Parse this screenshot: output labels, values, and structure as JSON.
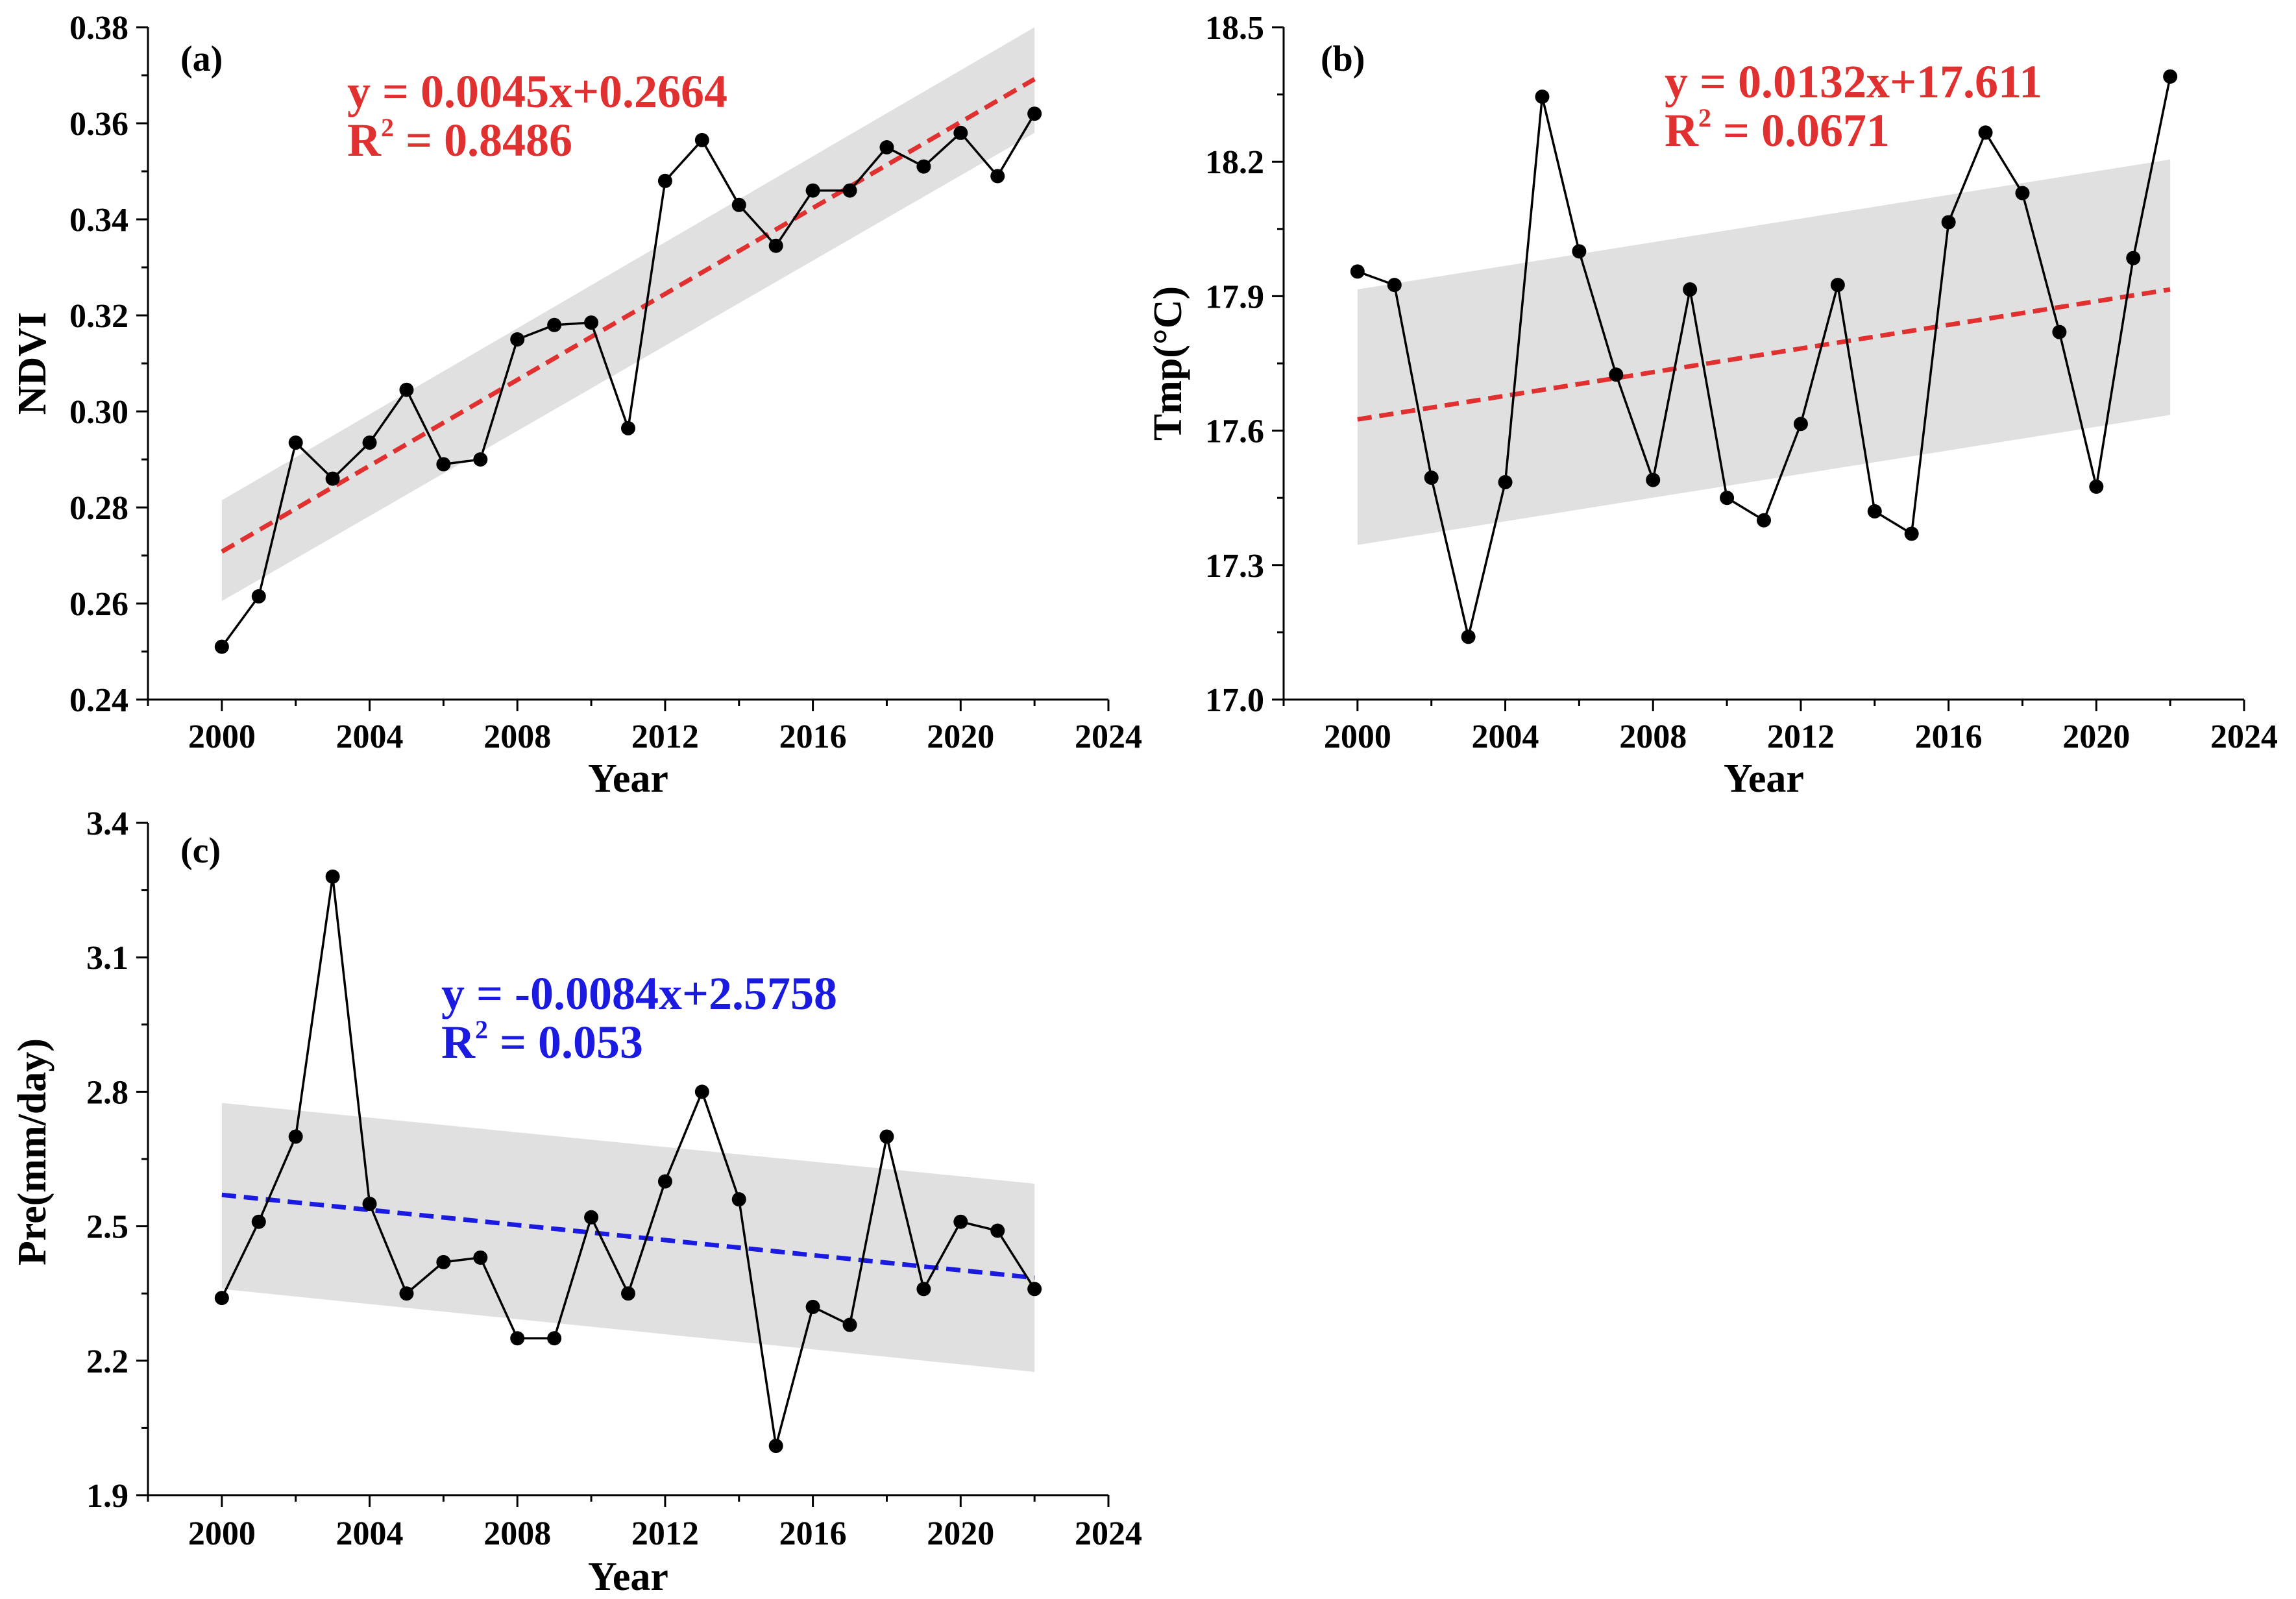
{
  "chart_data": [
    {
      "type": "line",
      "panel_label": "(a)",
      "xlabel": "Year",
      "ylabel": "NDVI",
      "xlim": [
        1998,
        2024
      ],
      "ylim": [
        0.24,
        0.38
      ],
      "xticks": [
        2000,
        2004,
        2008,
        2012,
        2016,
        2020,
        2024
      ],
      "xtick_labels": [
        "2000",
        "2004",
        "2008",
        "2012",
        "2016",
        "2020",
        "2024"
      ],
      "yticks": [
        0.24,
        0.26,
        0.28,
        0.3,
        0.32,
        0.34,
        0.36,
        0.38
      ],
      "ytick_labels": [
        "0.24",
        "0.26",
        "0.28",
        "0.30",
        "0.32",
        "0.34",
        "0.36",
        "0.38"
      ],
      "x": [
        2000,
        2001,
        2002,
        2003,
        2004,
        2005,
        2006,
        2007,
        2008,
        2009,
        2010,
        2011,
        2012,
        2013,
        2014,
        2015,
        2016,
        2017,
        2018,
        2019,
        2020,
        2021,
        2022
      ],
      "values": [
        0.251,
        0.2615,
        0.2935,
        0.286,
        0.2935,
        0.3045,
        0.289,
        0.29,
        0.315,
        0.318,
        0.3185,
        0.2965,
        0.348,
        0.3565,
        0.343,
        0.3345,
        0.346,
        0.346,
        0.355,
        0.351,
        0.358,
        0.349,
        0.362
      ],
      "trend": {
        "start": [
          2000,
          0.2708
        ],
        "end": [
          2022,
          0.3692
        ],
        "color": "#e03030"
      },
      "ci_lower": [
        0.2605,
        0.358
      ],
      "ci_upper": [
        0.2815,
        0.38
      ],
      "equation": "y = 0.0045x+0.2664",
      "r2_label": "R",
      "r2_sup": "2",
      "r2_value": " = 0.8486",
      "annotation_color": "#e03030"
    },
    {
      "type": "line",
      "panel_label": "(b)",
      "xlabel": "Year",
      "ylabel": "Tmp(°C)",
      "xlim": [
        1998,
        2024
      ],
      "ylim": [
        17.0,
        18.5
      ],
      "xticks": [
        2000,
        2004,
        2008,
        2012,
        2016,
        2020,
        2024
      ],
      "xtick_labels": [
        "2000",
        "2004",
        "2008",
        "2012",
        "2016",
        "2020",
        "2024"
      ],
      "yticks": [
        17.0,
        17.3,
        17.6,
        17.9,
        18.2,
        18.5
      ],
      "ytick_labels": [
        "17.0",
        "17.3",
        "17.6",
        "17.9",
        "18.2",
        "18.5"
      ],
      "x": [
        2000,
        2001,
        2002,
        2003,
        2004,
        2005,
        2006,
        2007,
        2008,
        2009,
        2010,
        2011,
        2012,
        2013,
        2014,
        2015,
        2016,
        2017,
        2018,
        2019,
        2020,
        2021,
        2022
      ],
      "values": [
        17.955,
        17.925,
        17.495,
        17.14,
        17.485,
        18.345,
        18.0,
        17.725,
        17.49,
        17.915,
        17.45,
        17.4,
        17.615,
        17.925,
        17.42,
        17.37,
        18.065,
        18.265,
        18.13,
        17.82,
        17.475,
        17.985,
        18.39
      ],
      "trend": {
        "start": [
          2000,
          17.625
        ],
        "end": [
          2022,
          17.915
        ],
        "color": "#e03030"
      },
      "ci_lower": [
        17.345,
        17.635
      ],
      "ci_upper": [
        17.915,
        18.205
      ],
      "equation": "y = 0.0132x+17.611",
      "r2_label": "R",
      "r2_sup": "2",
      "r2_value": " = 0.0671",
      "annotation_color": "#e03030"
    },
    {
      "type": "line",
      "panel_label": "(c)",
      "xlabel": "Year",
      "ylabel": "Pre(mm/day)",
      "xlim": [
        1998,
        2024
      ],
      "ylim": [
        1.9,
        3.4
      ],
      "xticks": [
        2000,
        2004,
        2008,
        2012,
        2016,
        2020,
        2024
      ],
      "xtick_labels": [
        "2000",
        "2004",
        "2008",
        "2012",
        "2016",
        "2020",
        "2024"
      ],
      "yticks": [
        1.9,
        2.2,
        2.5,
        2.8,
        3.1,
        3.4
      ],
      "ytick_labels": [
        "1.9",
        "2.2",
        "2.5",
        "2.8",
        "3.1",
        "3.4"
      ],
      "x": [
        2000,
        2001,
        2002,
        2003,
        2004,
        2005,
        2006,
        2007,
        2008,
        2009,
        2010,
        2011,
        2012,
        2013,
        2014,
        2015,
        2016,
        2017,
        2018,
        2019,
        2020,
        2021,
        2022
      ],
      "values": [
        2.34,
        2.51,
        2.7,
        3.28,
        2.55,
        2.35,
        2.42,
        2.43,
        2.25,
        2.25,
        2.52,
        2.35,
        2.6,
        2.8,
        2.56,
        2.01,
        2.32,
        2.28,
        2.7,
        2.36,
        2.51,
        2.49,
        2.36
      ],
      "trend": {
        "start": [
          2000,
          2.57
        ],
        "end": [
          2022,
          2.385
        ],
        "color": "#1a1ae0"
      },
      "ci_lower": [
        2.36,
        2.175
      ],
      "ci_upper": [
        2.775,
        2.595
      ],
      "equation": "y = -0.0084x+2.5758",
      "r2_label": "R",
      "r2_sup": "2",
      "r2_value": " = 0.053",
      "annotation_color": "#1a1ae0"
    }
  ]
}
